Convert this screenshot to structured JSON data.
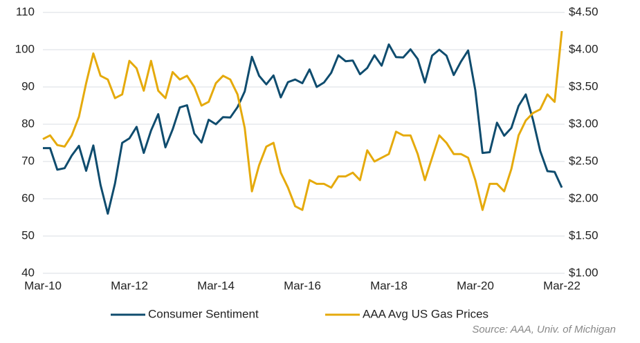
{
  "chart_data": {
    "type": "line",
    "categories": [
      "Mar-10",
      null,
      null,
      null,
      null,
      null,
      null,
      null,
      null,
      null,
      null,
      null,
      "Mar-12",
      null,
      null,
      null,
      null,
      null,
      null,
      null,
      null,
      null,
      null,
      null,
      "Mar-14",
      null,
      null,
      null,
      null,
      null,
      null,
      null,
      null,
      null,
      null,
      null,
      "Mar-16",
      null,
      null,
      null,
      null,
      null,
      null,
      null,
      null,
      null,
      null,
      null,
      "Mar-18",
      null,
      null,
      null,
      null,
      null,
      null,
      null,
      null,
      null,
      null,
      null,
      "Mar-20",
      null,
      null,
      null,
      null,
      null,
      null,
      null,
      null,
      null,
      null,
      null,
      "Mar-22"
    ],
    "series": [
      {
        "name": "Consumer Sentiment",
        "color": "#0f4c6e",
        "axis": "y",
        "values": [
          73.6,
          73.6,
          67.8,
          68.2,
          71.6,
          74.2,
          67.5,
          74.3,
          63.7,
          56,
          64.1,
          75,
          76.2,
          79.3,
          72.3,
          78.3,
          82.7,
          73.8,
          78.6,
          84.5,
          85.1,
          77.5,
          75.1,
          81.2,
          80,
          81.9,
          81.8,
          84.6,
          88.8,
          98.1,
          93,
          90.7,
          93.1,
          87.2,
          91.3,
          92,
          91,
          94.7,
          90,
          91.2,
          93.8,
          98.5,
          96.9,
          97.1,
          93.4,
          95.1,
          98.5,
          95.7,
          101.4,
          98,
          97.9,
          100.1,
          97.5,
          91.2,
          98.4,
          100,
          98.4,
          93.2,
          96.8,
          99.8,
          89.1,
          72.3,
          72.5,
          80.4,
          76.9,
          79,
          84.9,
          88,
          81.2,
          72.8,
          67.4,
          67.2,
          63
        ]
      },
      {
        "name": "AAA Avg US Gas Prices",
        "color": "#e5aa0c",
        "axis": "y2",
        "values": [
          2.8,
          2.85,
          2.72,
          2.7,
          2.85,
          3.1,
          3.55,
          3.95,
          3.65,
          3.6,
          3.35,
          3.4,
          3.85,
          3.75,
          3.45,
          3.85,
          3.45,
          3.35,
          3.7,
          3.6,
          3.65,
          3.5,
          3.25,
          3.3,
          3.55,
          3.65,
          3.6,
          3.4,
          2.95,
          2.1,
          2.45,
          2.7,
          2.75,
          2.35,
          2.15,
          1.9,
          1.85,
          2.25,
          2.2,
          2.2,
          2.15,
          2.3,
          2.3,
          2.35,
          2.25,
          2.65,
          2.5,
          2.55,
          2.6,
          2.9,
          2.85,
          2.85,
          2.6,
          2.25,
          2.55,
          2.85,
          2.75,
          2.6,
          2.6,
          2.55,
          2.25,
          1.85,
          2.2,
          2.2,
          2.1,
          2.4,
          2.85,
          3.05,
          3.15,
          3.2,
          3.4,
          3.3,
          4.25
        ]
      }
    ],
    "ylim": [
      40,
      110
    ],
    "yticks": [
      40,
      50,
      60,
      70,
      80,
      90,
      100,
      110
    ],
    "y2lim": [
      1,
      4.5
    ],
    "y2ticks": [
      {
        "value": 1,
        "label": "$1.00"
      },
      {
        "value": 1.5,
        "label": "$1.50"
      },
      {
        "value": 2,
        "label": "$2.00"
      },
      {
        "value": 2.5,
        "label": "$2.50"
      },
      {
        "value": 3,
        "label": "$3.00"
      },
      {
        "value": 3.5,
        "label": "$3.50"
      },
      {
        "value": 4,
        "label": "$4.00"
      },
      {
        "value": 4.5,
        "label": "$4.50"
      }
    ],
    "grid": true,
    "legend": "bottom",
    "source": "Source: AAA, Univ. of Michigan"
  }
}
